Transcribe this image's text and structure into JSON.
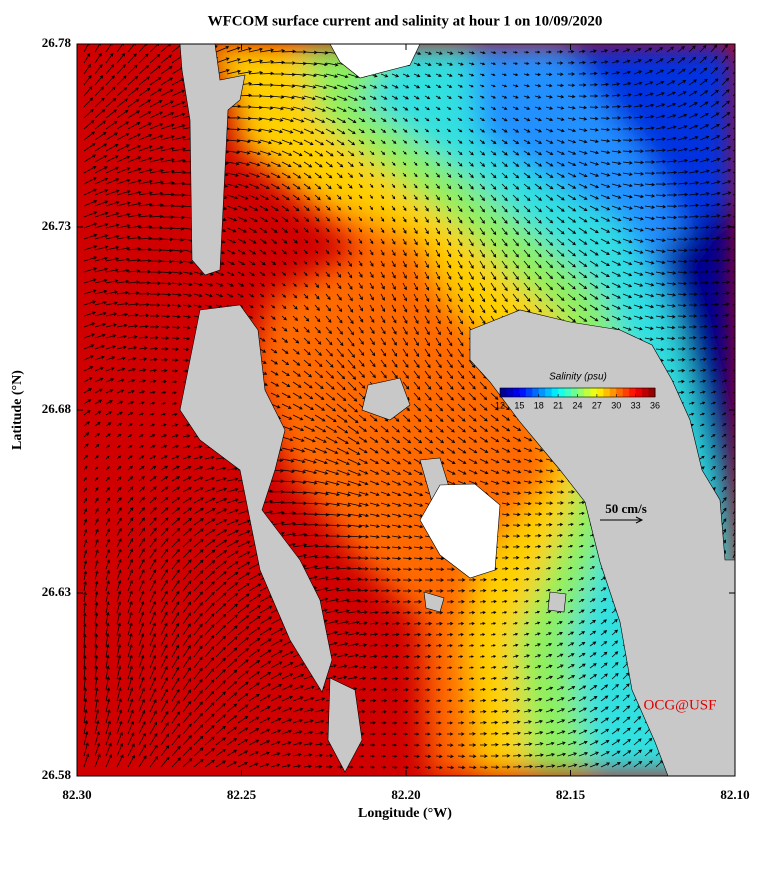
{
  "title": "WFCOM surface current and salinity at hour 1 on 10/09/2020",
  "map": {
    "xlabel": "Longitude (°W)",
    "ylabel": "Latitude (°N)",
    "xlim": [
      82.3,
      82.1
    ],
    "ylim": [
      26.58,
      26.78
    ],
    "xticks": [
      {
        "value": 82.3,
        "label": "82.30"
      },
      82.25,
      {
        "value": 82.2,
        "label": "82.20"
      },
      82.15,
      {
        "value": 82.1,
        "label": "82.10"
      }
    ],
    "yticks": [
      26.58,
      26.63,
      26.68,
      26.73,
      26.78
    ]
  },
  "colorbar": {
    "title": "Salinity (psu)",
    "lim": [
      12,
      36
    ],
    "ticks": [
      12,
      15,
      18,
      21,
      24,
      27,
      30,
      33,
      36
    ]
  },
  "annotations": {
    "scale": "50 cm/s",
    "credit": "OCG@USF"
  }
}
